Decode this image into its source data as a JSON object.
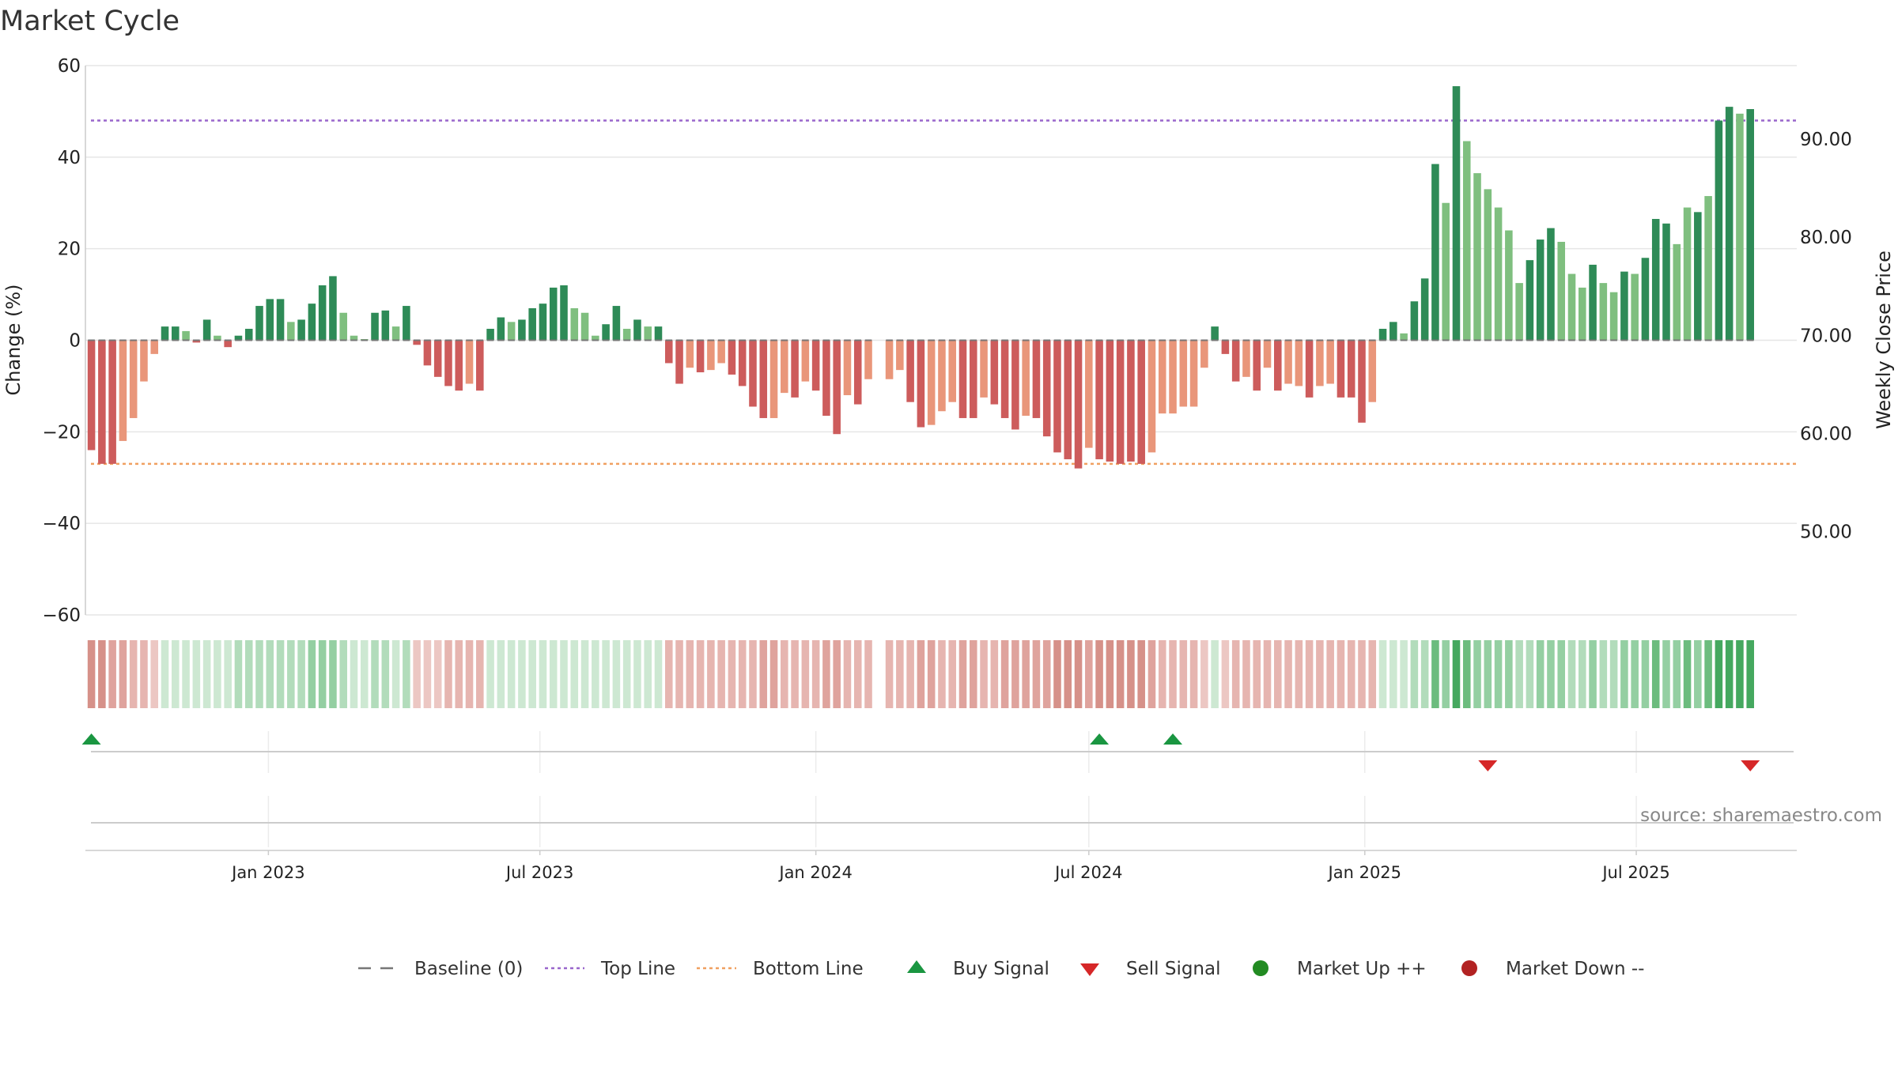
{
  "chart_data": {
    "type": "bar",
    "title": "Market Cycle",
    "ylabel_left": "Change (%)",
    "ylabel_right": "Weekly Close Price",
    "source": "source: sharemaestro.com",
    "y_left": {
      "min": -60,
      "max": 60,
      "ticks": [
        60,
        40,
        20,
        0,
        -20,
        -40,
        -60
      ],
      "tick_labels": [
        "60",
        "40",
        "20",
        "0",
        "−20",
        "−40",
        "−60"
      ]
    },
    "y_right": {
      "min": 41.5,
      "max": 97.5,
      "ticks": [
        90,
        80,
        70,
        60,
        50
      ],
      "tick_labels": [
        "90.00",
        "80.00",
        "70.00",
        "60.00",
        "50.00"
      ]
    },
    "x_range": [
      "2022-09-01",
      "2025-10-16"
    ],
    "x_ticks": [
      {
        "date": "2023-01-01",
        "label": "Jan 2023"
      },
      {
        "date": "2023-07-01",
        "label": "Jul 2023"
      },
      {
        "date": "2024-01-01",
        "label": "Jan 2024"
      },
      {
        "date": "2024-07-01",
        "label": "Jul 2024"
      },
      {
        "date": "2025-01-01",
        "label": "Jan 2025"
      },
      {
        "date": "2025-07-01",
        "label": "Jul 2025"
      }
    ],
    "first_week": "2022-09-05",
    "week_gap_index": 75,
    "top_line": 48,
    "bottom_line": -27,
    "colors": {
      "up_strong": "#2e8b57",
      "up_light": "#7fbf7f",
      "down_strong": "#cd5c5c",
      "down_light": "#e9967a",
      "top_line": "#9966cc",
      "bottom_line": "#f0a060",
      "buy": "#1a9641",
      "sell": "#d62728",
      "market_up": "#228b22",
      "market_down": "#b22222",
      "baseline": "#777777"
    },
    "series": [
      {
        "name": "Change (%)",
        "values": [
          -24,
          -27,
          -27,
          -22,
          -17,
          -9,
          -3,
          3,
          3,
          2,
          -0.5,
          4.5,
          1,
          -1.5,
          1,
          2.5,
          7.5,
          9,
          9,
          4,
          4.5,
          8,
          12,
          14,
          6,
          1,
          0,
          6,
          6.5,
          3,
          7.5,
          -1,
          -5.5,
          -8,
          -10,
          -11,
          -9.5,
          -11,
          2.5,
          5,
          4,
          4.5,
          7,
          8,
          11.5,
          12,
          7,
          6,
          1,
          3.5,
          7.5,
          2.5,
          4.5,
          3,
          3,
          -5,
          -9.5,
          -6,
          -7,
          -6.5,
          -5,
          -7.5,
          -10,
          -14.5,
          -17,
          -17,
          -11.5,
          -12.5,
          -9,
          -11,
          -16.5,
          -20.5,
          -12,
          -14,
          -8.5,
          -8.5,
          -6.5,
          -13.5,
          -19,
          -18.5,
          -15.5,
          -13.5,
          -17,
          -17,
          -12.5,
          -14,
          -17,
          -19.5,
          -16.5,
          -17,
          -21,
          -24.5,
          -26,
          -28,
          -23.5,
          -26,
          -26.5,
          -27,
          -26.5,
          -27,
          -24.5,
          -16,
          -16,
          -14.5,
          -14.5,
          -6,
          3,
          -3,
          -9,
          -8,
          -11,
          -6,
          -11,
          -9.5,
          -10,
          -12.5,
          -10,
          -9.5,
          -12.5,
          -12.5,
          -18,
          -13.5,
          2.5,
          4,
          1.5,
          8.5,
          13.5,
          38.5,
          30,
          55.5,
          43.5,
          36.5,
          33,
          29,
          24,
          12.5,
          17.5,
          22,
          24.5,
          21.5,
          14.5,
          11.5,
          16.5,
          12.5,
          10.5,
          15,
          14.5,
          18,
          26.5,
          25.5,
          21,
          29,
          28,
          31.5,
          48,
          51,
          49.5,
          50.5
        ],
        "light": [
          0,
          0,
          0,
          1,
          1,
          1,
          1,
          0,
          0,
          1,
          0,
          0,
          1,
          0,
          0,
          0,
          0,
          0,
          0,
          1,
          0,
          0,
          0,
          0,
          1,
          1,
          1,
          0,
          0,
          1,
          0,
          0,
          0,
          0,
          0,
          0,
          1,
          0,
          0,
          0,
          1,
          0,
          0,
          0,
          0,
          0,
          1,
          1,
          1,
          0,
          0,
          1,
          0,
          1,
          0,
          0,
          0,
          1,
          0,
          1,
          1,
          0,
          0,
          0,
          0,
          1,
          1,
          0,
          1,
          0,
          0,
          0,
          1,
          0,
          1,
          1,
          1,
          0,
          0,
          1,
          1,
          1,
          0,
          0,
          1,
          0,
          0,
          0,
          1,
          0,
          0,
          0,
          0,
          0,
          1,
          0,
          0,
          0,
          0,
          0,
          1,
          1,
          1,
          1,
          1,
          1,
          0,
          0,
          0,
          1,
          0,
          1,
          0,
          1,
          1,
          0,
          1,
          1,
          0,
          0,
          0,
          1,
          0,
          0,
          1,
          0,
          0,
          0,
          1,
          0,
          1,
          1,
          1,
          1,
          1,
          1,
          0,
          0,
          0,
          1,
          1,
          1,
          0,
          1,
          1,
          0,
          1,
          0,
          0,
          0,
          1,
          1,
          0,
          1,
          0,
          0,
          1,
          0,
          0,
          1,
          0
        ]
      }
    ],
    "heat_strip": [
      -4,
      -4,
      -3,
      -3,
      -2,
      -2,
      -1,
      1,
      1,
      1,
      1,
      1,
      1,
      1,
      2,
      2,
      2,
      2,
      2,
      2,
      2,
      3,
      3,
      3,
      2,
      1,
      1,
      2,
      2,
      1,
      2,
      -1,
      -1,
      -1,
      -2,
      -2,
      -2,
      -2,
      1,
      1,
      1,
      1,
      1,
      1,
      1,
      1,
      1,
      1,
      1,
      1,
      1,
      1,
      1,
      1,
      1,
      -2,
      -2,
      -2,
      -2,
      -2,
      -2,
      -2,
      -2,
      -2,
      -3,
      -3,
      -2,
      -2,
      -2,
      -2,
      -3,
      -3,
      -2,
      -2,
      -2,
      -2,
      -2,
      -2,
      -3,
      -3,
      -2,
      -2,
      -3,
      -3,
      -2,
      -2,
      -3,
      -3,
      -3,
      -3,
      -3,
      -4,
      -4,
      -4,
      -3,
      -4,
      -4,
      -4,
      -4,
      -4,
      -3,
      -2,
      -2,
      -2,
      -2,
      -1,
      1,
      -1,
      -2,
      -2,
      -2,
      -2,
      -2,
      -2,
      -2,
      -2,
      -2,
      -2,
      -2,
      -2,
      -2,
      -2,
      1,
      1,
      1,
      2,
      2,
      4,
      3,
      5,
      4,
      3,
      3,
      3,
      3,
      2,
      2,
      3,
      3,
      3,
      2,
      2,
      3,
      2,
      2,
      3,
      3,
      3,
      4,
      3,
      3,
      4,
      3,
      4,
      5,
      5,
      5,
      5
    ],
    "buy_signals": [
      "2022-09-05",
      "2024-07-08",
      "2024-08-26"
    ],
    "sell_signals": [
      "2025-03-24",
      "2025-09-15"
    ],
    "legend": [
      {
        "label": "Baseline (0)",
        "symbol": "dash"
      },
      {
        "label": "Top Line",
        "symbol": "dot-purple"
      },
      {
        "label": "Bottom Line",
        "symbol": "dot-orange"
      },
      {
        "label": "Buy Signal",
        "symbol": "triangle-up"
      },
      {
        "label": "Sell Signal",
        "symbol": "triangle-down"
      },
      {
        "label": "Market Up ++",
        "symbol": "circle-green"
      },
      {
        "label": "Market Down --",
        "symbol": "circle-red"
      }
    ]
  }
}
